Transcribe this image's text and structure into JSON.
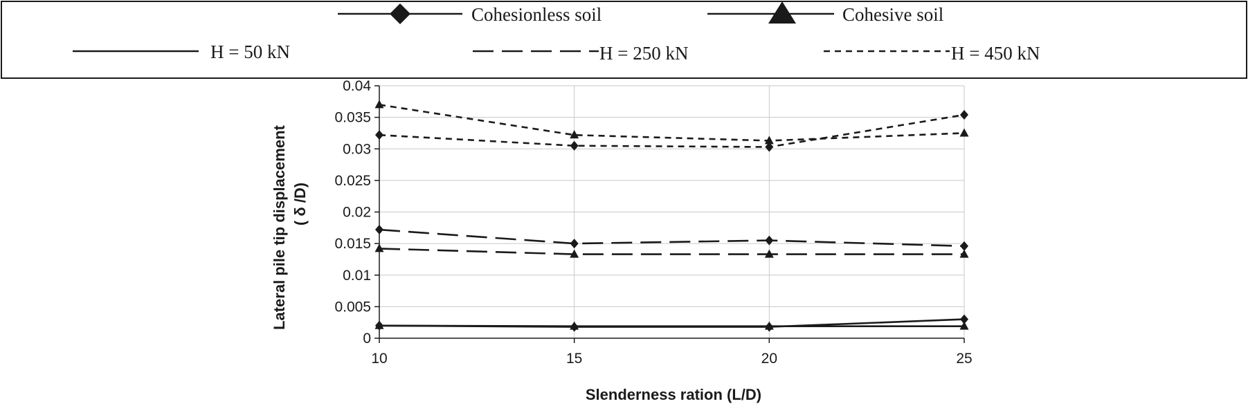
{
  "chart_data": {
    "type": "line",
    "title": "",
    "xlabel": "Slenderness ration (L/D)",
    "ylabel": "Lateral pile tip displacement",
    "ylabel_line2": "( δ /D)",
    "x": [
      10,
      15,
      20,
      25
    ],
    "xlim": [
      10,
      25
    ],
    "ylim": [
      0,
      0.04
    ],
    "x_ticks": [
      "10",
      "15",
      "20",
      "25"
    ],
    "y_ticks": [
      "0",
      "0.005",
      "0.01",
      "0.015",
      "0.02",
      "0.025",
      "0.03",
      "0.035",
      "0.04"
    ],
    "grid": true,
    "legend_placement": "top",
    "legend": {
      "soils": [
        {
          "label": "Cohesionless soil",
          "marker": "diamond"
        },
        {
          "label": "Cohesive soil",
          "marker": "triangle"
        }
      ],
      "loads": [
        {
          "label": "H = 50 kN",
          "dash": "solid"
        },
        {
          "label": "H = 250 kN",
          "dash": "long-dash"
        },
        {
          "label": "H = 450 kN",
          "dash": "short-dash"
        }
      ]
    },
    "series": [
      {
        "soil": "Cohesionless soil",
        "load": "H = 50 kN",
        "marker": "diamond",
        "dash": "solid",
        "values": [
          0.002,
          0.0018,
          0.0018,
          0.003
        ]
      },
      {
        "soil": "Cohesive soil",
        "load": "H = 50 kN",
        "marker": "triangle",
        "dash": "solid",
        "values": [
          0.002,
          0.0019,
          0.0019,
          0.0019
        ]
      },
      {
        "soil": "Cohesionless soil",
        "load": "H = 250 kN",
        "marker": "diamond",
        "dash": "long-dash",
        "values": [
          0.0172,
          0.015,
          0.0155,
          0.0146
        ]
      },
      {
        "soil": "Cohesive soil",
        "load": "H = 250 kN",
        "marker": "triangle",
        "dash": "long-dash",
        "values": [
          0.0142,
          0.0133,
          0.0133,
          0.0133
        ]
      },
      {
        "soil": "Cohesionless soil",
        "load": "H = 450 kN",
        "marker": "diamond",
        "dash": "short-dash",
        "values": [
          0.0322,
          0.0305,
          0.0303,
          0.0354
        ]
      },
      {
        "soil": "Cohesive soil",
        "load": "H = 450 kN",
        "marker": "triangle",
        "dash": "short-dash",
        "values": [
          0.037,
          0.0322,
          0.0313,
          0.0325
        ]
      }
    ],
    "colors": {
      "line": "#1a1a1a",
      "grid": "#c8c8c8",
      "background": "#ffffff"
    }
  }
}
